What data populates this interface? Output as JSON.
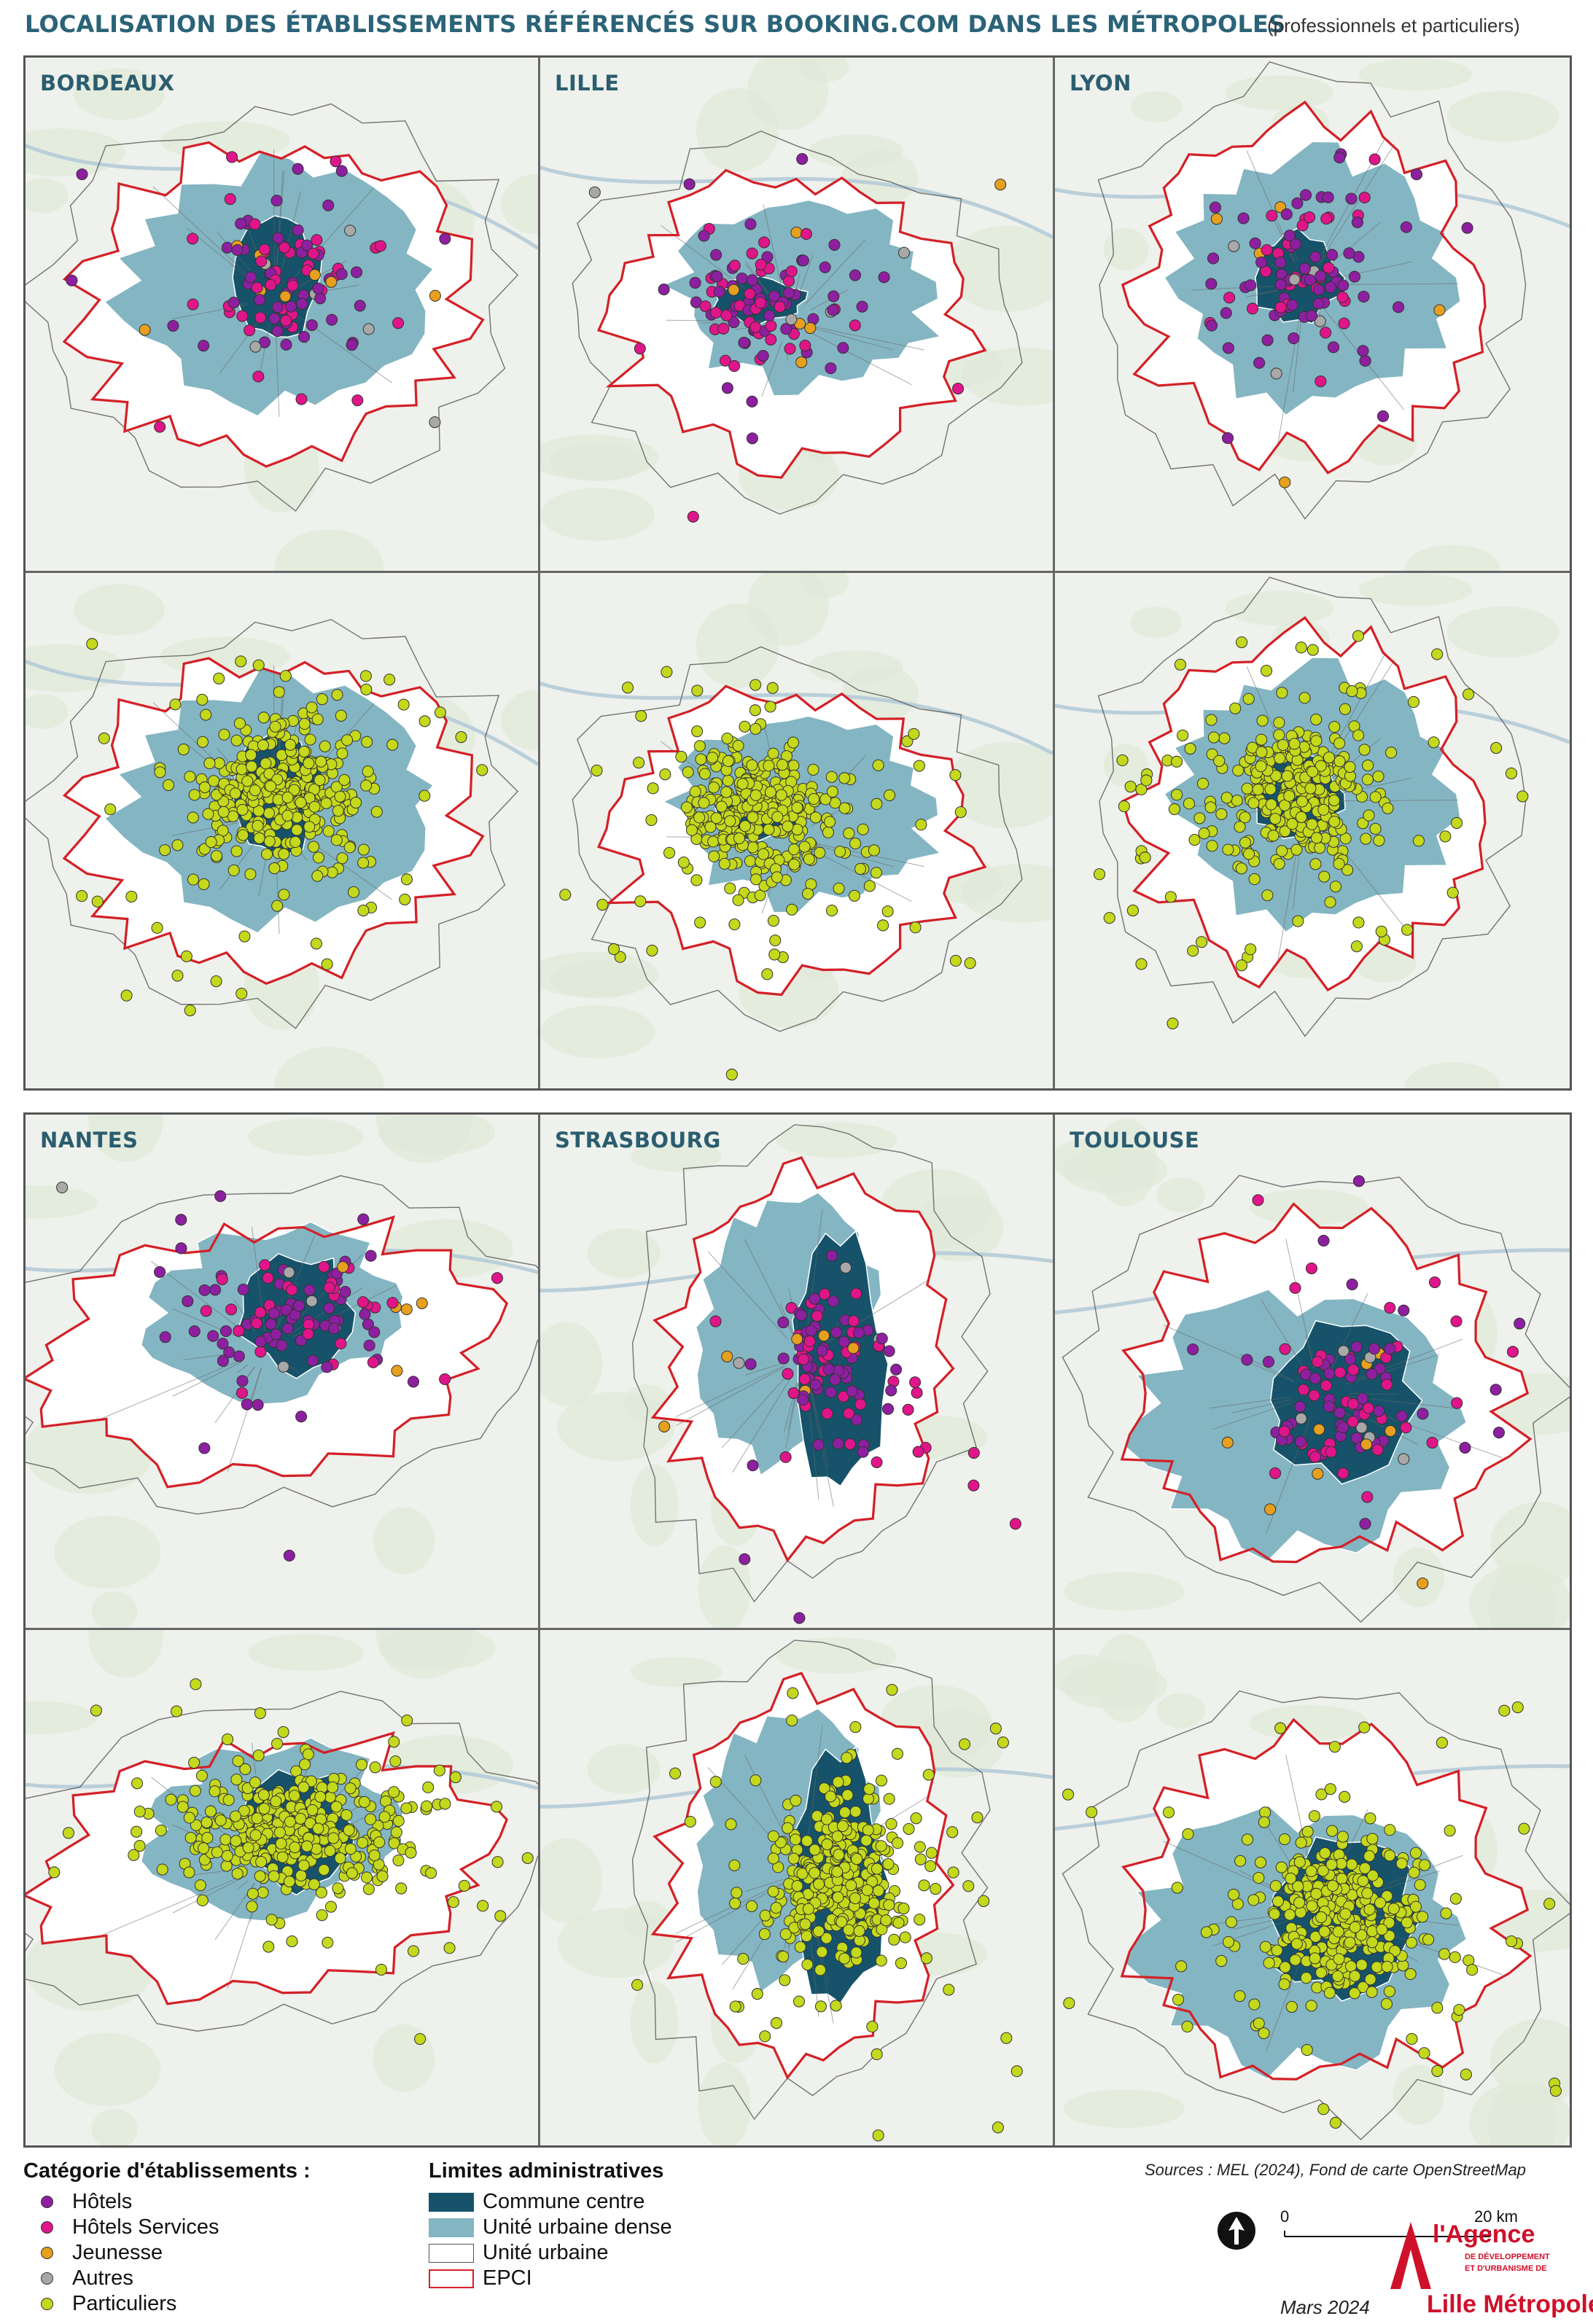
{
  "title": "LOCALISATION DES ÉTABLISSEMENTS RÉFÉRENCÉS SUR BOOKING.COM DANS LES MÉTROPOLES",
  "subtitle": "(professionnels et particuliers)",
  "colors": {
    "hotels": "#8e1fa0",
    "hotels_services": "#e0158a",
    "jeunesse": "#e6a01e",
    "autres": "#a8a8a8",
    "particuliers": "#c4d81c",
    "commune_centre": "#16536a",
    "unite_urbaine_dense": "#84b5c2",
    "unite_urbaine": "#ffffff",
    "epci": "#d42027",
    "basemap": "#eef1ec"
  },
  "maps": [
    {
      "city": "BORDEAUX",
      "label": "BORDEAUX"
    },
    {
      "city": "LILLE",
      "label": "LILLE"
    },
    {
      "city": "LYON",
      "label": "LYON"
    },
    {
      "city": "NANTES",
      "label": "NANTES"
    },
    {
      "city": "STRASBOURG",
      "label": "STRASBOURG"
    },
    {
      "city": "TOULOUSE",
      "label": "TOULOUSE"
    }
  ],
  "legend": {
    "categories_title": "Catégorie d'établissements :",
    "categories": [
      {
        "label": "Hôtels",
        "color": "#8e1fa0"
      },
      {
        "label": "Hôtels Services",
        "color": "#e0158a"
      },
      {
        "label": "Jeunesse",
        "color": "#e6a01e"
      },
      {
        "label": "Autres",
        "color": "#a8a8a8"
      },
      {
        "label": "Particuliers",
        "color": "#c4d81c"
      }
    ],
    "admin_title": "Limites administratives",
    "admin": [
      {
        "label": "Commune centre"
      },
      {
        "label": "Unité urbaine dense"
      },
      {
        "label": "Unité urbaine"
      },
      {
        "label": "EPCI"
      }
    ]
  },
  "sources": "Sources :  MEL (2024), Fond de carte OpenStreetMap",
  "scale": {
    "start": "0",
    "end": "20 km"
  },
  "date": "Mars 2024",
  "logo": {
    "brand": "l'Agence",
    "line1": "DE DÉVELOPPEMENT",
    "line2": "ET D'URBANISME DE",
    "name": "Lille Métropole"
  }
}
